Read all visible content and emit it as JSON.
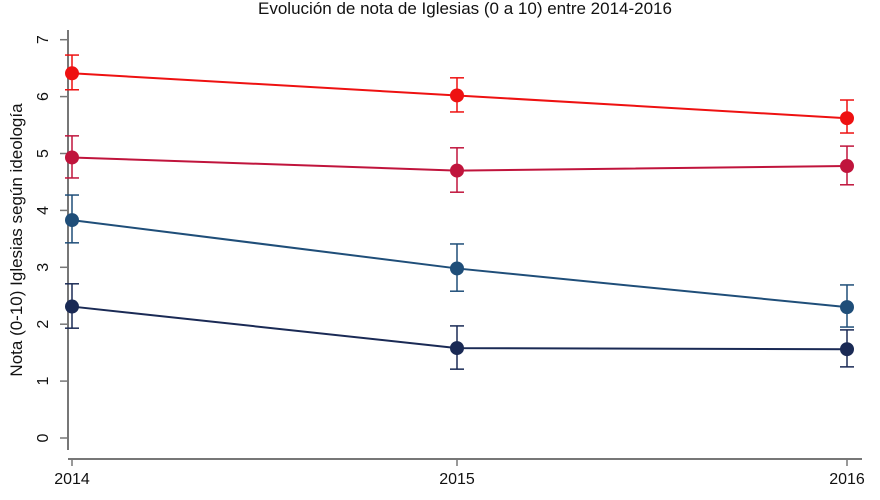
{
  "chart_data": {
    "type": "line",
    "title": "Evolución de nota de Iglesias (0 a 10) entre 2014-2016",
    "xlabel": "",
    "ylabel": "Nota (0-10) Iglesias según ideología",
    "x": [
      2014,
      2015,
      2016
    ],
    "x_tick_labels": [
      "2014",
      "2015",
      "2016"
    ],
    "y_ticks": [
      0,
      1,
      2,
      3,
      4,
      5,
      6,
      7
    ],
    "y_tick_labels": [
      "0",
      "1",
      "2",
      "3",
      "4",
      "5",
      "6",
      "7"
    ],
    "ylim": [
      0,
      7
    ],
    "grid": false,
    "series": [
      {
        "name": "series-1",
        "color": "#ee1111",
        "values": [
          6.41,
          6.02,
          5.62
        ],
        "ci_low": [
          6.12,
          5.73,
          5.36
        ],
        "ci_high": [
          6.73,
          6.33,
          5.94
        ]
      },
      {
        "name": "series-2",
        "color": "#c0143c",
        "values": [
          4.93,
          4.7,
          4.78
        ],
        "ci_low": [
          4.57,
          4.32,
          4.45
        ],
        "ci_high": [
          5.31,
          5.1,
          5.13
        ]
      },
      {
        "name": "series-3",
        "color": "#1f4e79",
        "values": [
          3.83,
          2.98,
          2.3
        ],
        "ci_low": [
          3.43,
          2.58,
          1.95
        ],
        "ci_high": [
          4.27,
          3.41,
          2.69
        ]
      },
      {
        "name": "series-4",
        "color": "#1a2a55",
        "values": [
          2.31,
          1.58,
          1.56
        ],
        "ci_low": [
          1.93,
          1.21,
          1.25
        ],
        "ci_high": [
          2.71,
          1.97,
          1.9
        ]
      }
    ]
  }
}
